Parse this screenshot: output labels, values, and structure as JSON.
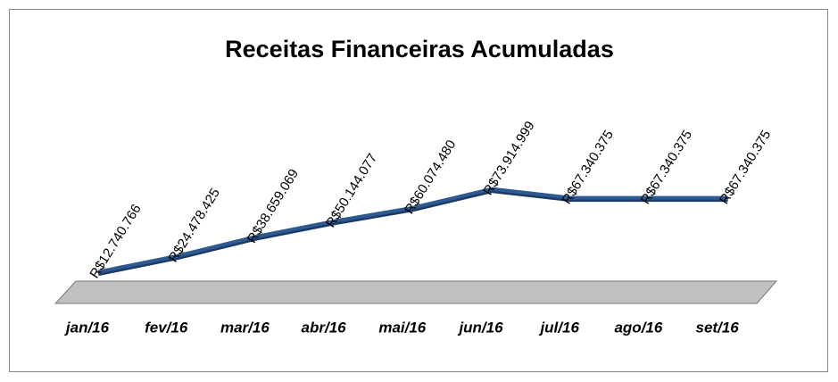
{
  "chart_data": {
    "type": "line",
    "title": "Receitas Financeiras Acumuladas",
    "categories": [
      "jan/16",
      "fev/16",
      "mar/16",
      "abr/16",
      "mai/16",
      "jun/16",
      "jul/16",
      "ago/16",
      "set/16"
    ],
    "values": [
      12740766,
      24478425,
      38659069,
      50144077,
      60074480,
      73914999,
      67340375,
      67340375,
      67340375
    ],
    "value_labels": [
      "R$12.740.766",
      "R$24.478.425",
      "R$38.659.069",
      "R$50.144.077",
      "R$60.074.480",
      "R$73.914.999",
      "R$67.340.375",
      "R$67.340.375",
      "R$67.340.375"
    ],
    "color": "#2e5a92",
    "ylim": [
      0,
      200000000
    ]
  }
}
